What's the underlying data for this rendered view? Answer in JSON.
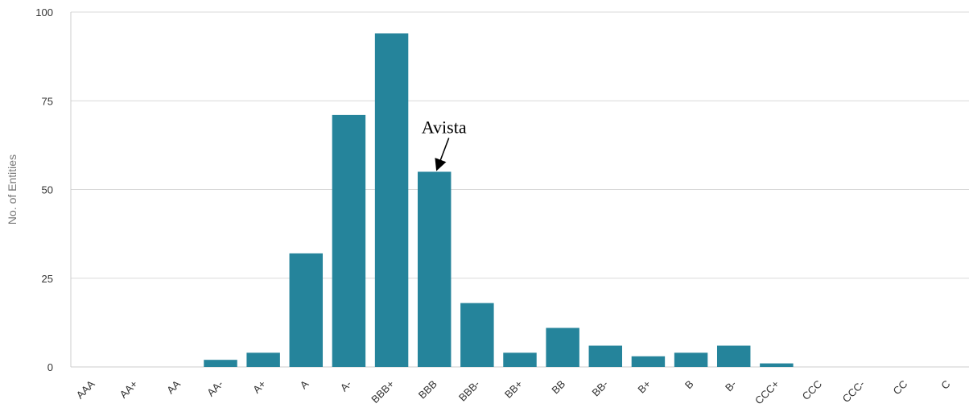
{
  "chart_data": {
    "type": "bar",
    "categories": [
      "AAA",
      "AA+",
      "AA",
      "AA-",
      "A+",
      "A",
      "A-",
      "BBB+",
      "BBB",
      "BBB-",
      "BB+",
      "BB",
      "BB-",
      "B+",
      "B",
      "B-",
      "CCC+",
      "CCC",
      "CCC-",
      "CC",
      "C"
    ],
    "values": [
      0,
      0,
      0,
      2,
      4,
      32,
      71,
      94,
      55,
      18,
      4,
      11,
      6,
      3,
      4,
      6,
      1,
      0,
      0,
      0,
      0
    ],
    "title": "",
    "xlabel": "",
    "ylabel": "No. of Entities",
    "ylim": [
      0,
      100
    ],
    "yticks": [
      0,
      25,
      50,
      75,
      100
    ],
    "grid": true,
    "bar_color": "#25849b",
    "annotation": {
      "text": "Avista",
      "category": "BBB"
    }
  }
}
